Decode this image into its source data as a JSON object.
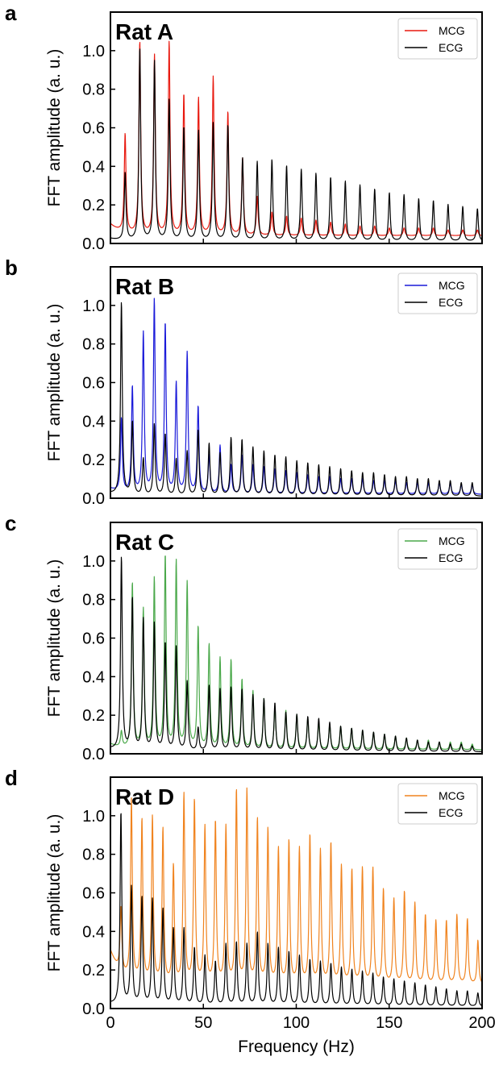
{
  "chart_data": [
    {
      "type": "line",
      "panel_label": "a",
      "title": "Rat A",
      "ylabel": "FFT amplitude (a. u.)",
      "xlabel": "",
      "xlim": [
        0,
        200
      ],
      "ylim": [
        0,
        1.2
      ],
      "yticks": [
        "0.0",
        "0.2",
        "0.4",
        "0.6",
        "0.8",
        "1.0"
      ],
      "legend": "top-right",
      "series": [
        {
          "name": "MCG",
          "color": "#e8190f",
          "fundamental_hz": 7.9,
          "floor": 0.04,
          "peaks": [
            0.51,
            1.0,
            0.93,
            1.0,
            0.73,
            0.71,
            0.82,
            0.64,
            0.4,
            0.2,
            0.12,
            0.1,
            0.09,
            0.08,
            0.07,
            0.06,
            0.05,
            0.05,
            0.04,
            0.04,
            0.04,
            0.04,
            0.03,
            0.03,
            0.03
          ]
        },
        {
          "name": "ECG",
          "color": "#000000",
          "fundamental_hz": 7.9,
          "floor": 0.01,
          "peaks": [
            0.35,
            1.0,
            0.93,
            0.73,
            0.59,
            0.57,
            0.61,
            0.6,
            0.43,
            0.41,
            0.42,
            0.39,
            0.37,
            0.35,
            0.33,
            0.31,
            0.29,
            0.27,
            0.25,
            0.24,
            0.22,
            0.21,
            0.19,
            0.18,
            0.17
          ]
        }
      ]
    },
    {
      "type": "line",
      "panel_label": "b",
      "title": "Rat B",
      "ylabel": "FFT amplitude (a. u.)",
      "xlabel": "",
      "xlim": [
        0,
        200
      ],
      "ylim": [
        0,
        1.2
      ],
      "yticks": [
        "0.0",
        "0.2",
        "0.4",
        "0.6",
        "0.8",
        "1.0"
      ],
      "legend": "top-right",
      "series": [
        {
          "name": "MCG",
          "color": "#1a1ad9",
          "fundamental_hz": 5.9,
          "floor": 0.02,
          "peaks": [
            0.38,
            0.55,
            0.83,
            1.0,
            0.88,
            0.57,
            0.73,
            0.45,
            0.2,
            0.25,
            0.15,
            0.2,
            0.15,
            0.14,
            0.13,
            0.12,
            0.11,
            0.1,
            0.09,
            0.09,
            0.08,
            0.08,
            0.08,
            0.07,
            0.07,
            0.07,
            0.06,
            0.06,
            0.06,
            0.06,
            0.06,
            0.05,
            0.05
          ]
        },
        {
          "name": "ECG",
          "color": "#000000",
          "fundamental_hz": 5.9,
          "floor": 0.01,
          "peaks": [
            1.0,
            0.38,
            0.19,
            0.37,
            0.32,
            0.19,
            0.23,
            0.34,
            0.27,
            0.22,
            0.3,
            0.29,
            0.25,
            0.23,
            0.21,
            0.2,
            0.18,
            0.17,
            0.16,
            0.15,
            0.14,
            0.13,
            0.12,
            0.12,
            0.11,
            0.1,
            0.1,
            0.09,
            0.09,
            0.08,
            0.08,
            0.07,
            0.07
          ]
        }
      ]
    },
    {
      "type": "line",
      "panel_label": "c",
      "title": "Rat C",
      "ylabel": "FFT amplitude (a. u.)",
      "xlabel": "",
      "xlim": [
        0,
        200
      ],
      "ylim": [
        0,
        1.2
      ],
      "yticks": [
        "0.0",
        "0.2",
        "0.4",
        "0.6",
        "0.8",
        "1.0"
      ],
      "legend": "top-right",
      "series": [
        {
          "name": "MCG",
          "color": "#4aa84a",
          "fundamental_hz": 5.9,
          "floor": 0.02,
          "peaks": [
            0.08,
            0.86,
            0.72,
            0.88,
            1.0,
            0.97,
            0.86,
            0.63,
            0.54,
            0.47,
            0.46,
            0.36,
            0.3,
            0.26,
            0.22,
            0.2,
            0.18,
            0.16,
            0.14,
            0.13,
            0.12,
            0.11,
            0.1,
            0.09,
            0.08,
            0.07,
            0.06,
            0.05,
            0.05,
            0.04,
            0.04,
            0.04,
            0.03
          ]
        },
        {
          "name": "ECG",
          "color": "#000000",
          "fundamental_hz": 5.9,
          "floor": 0.01,
          "peaks": [
            1.0,
            0.79,
            0.68,
            0.66,
            0.56,
            0.54,
            0.36,
            0.12,
            0.34,
            0.32,
            0.33,
            0.32,
            0.29,
            0.27,
            0.25,
            0.2,
            0.19,
            0.18,
            0.17,
            0.15,
            0.13,
            0.12,
            0.11,
            0.1,
            0.09,
            0.08,
            0.07,
            0.06,
            0.05,
            0.05,
            0.04,
            0.04,
            0.03
          ]
        }
      ]
    },
    {
      "type": "line",
      "panel_label": "d",
      "title": "Rat D",
      "ylabel": "FFT amplitude (a. u.)",
      "xlabel": "Frequency (Hz)",
      "xlim": [
        0,
        200
      ],
      "xticks": [
        "0",
        "50",
        "100",
        "150",
        "200"
      ],
      "ylim": [
        0,
        1.2
      ],
      "yticks": [
        "0.0",
        "0.2",
        "0.4",
        "0.6",
        "0.8",
        "1.0"
      ],
      "legend": "top-right",
      "series": [
        {
          "name": "MCG",
          "color": "#f0831e",
          "fundamental_hz": 5.65,
          "floor": 0.12,
          "peaks": [
            0.33,
            0.93,
            0.84,
            0.86,
            0.8,
            0.61,
            0.98,
            0.95,
            0.81,
            0.84,
            0.81,
            1.0,
            1.0,
            0.85,
            0.8,
            0.7,
            0.74,
            0.7,
            0.77,
            0.69,
            0.73,
            0.61,
            0.59,
            0.6,
            0.6,
            0.49,
            0.44,
            0.48,
            0.42,
            0.36,
            0.33,
            0.33,
            0.36,
            0.34,
            0.23
          ]
        },
        {
          "name": "ECG",
          "color": "#000000",
          "fundamental_hz": 5.65,
          "floor": 0.01,
          "peaks": [
            1.0,
            0.61,
            0.56,
            0.55,
            0.5,
            0.4,
            0.4,
            0.3,
            0.26,
            0.23,
            0.32,
            0.33,
            0.32,
            0.38,
            0.32,
            0.3,
            0.28,
            0.26,
            0.24,
            0.23,
            0.22,
            0.2,
            0.19,
            0.18,
            0.17,
            0.15,
            0.14,
            0.13,
            0.12,
            0.11,
            0.1,
            0.09,
            0.08,
            0.08,
            0.07
          ]
        }
      ]
    }
  ]
}
